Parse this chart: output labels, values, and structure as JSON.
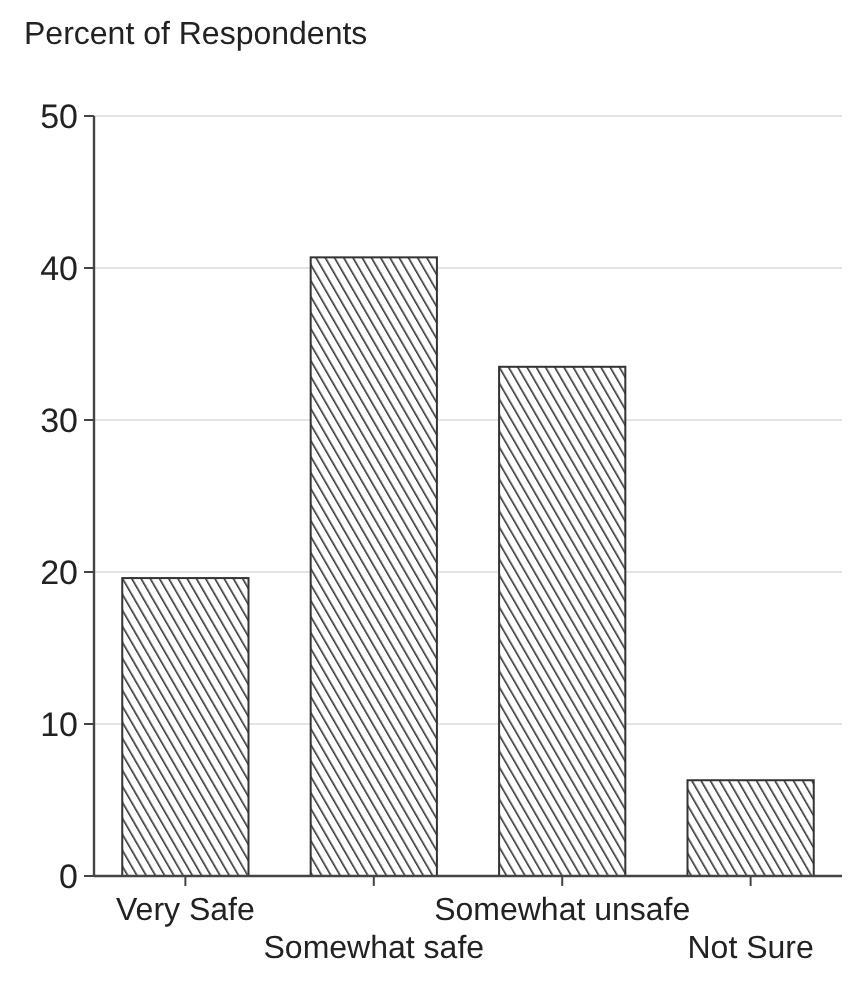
{
  "chart_data": {
    "type": "bar",
    "ylabel": "Percent of Respondents",
    "categories": [
      "Very Safe",
      "Somewhat safe",
      "Somewhat unsafe",
      "Not Sure"
    ],
    "values": [
      19.6,
      40.7,
      33.5,
      6.3
    ],
    "color": "#333333",
    "ylim": [
      0,
      50
    ],
    "yticks": [
      0,
      10,
      20,
      30,
      40,
      50
    ],
    "grid": "y"
  }
}
